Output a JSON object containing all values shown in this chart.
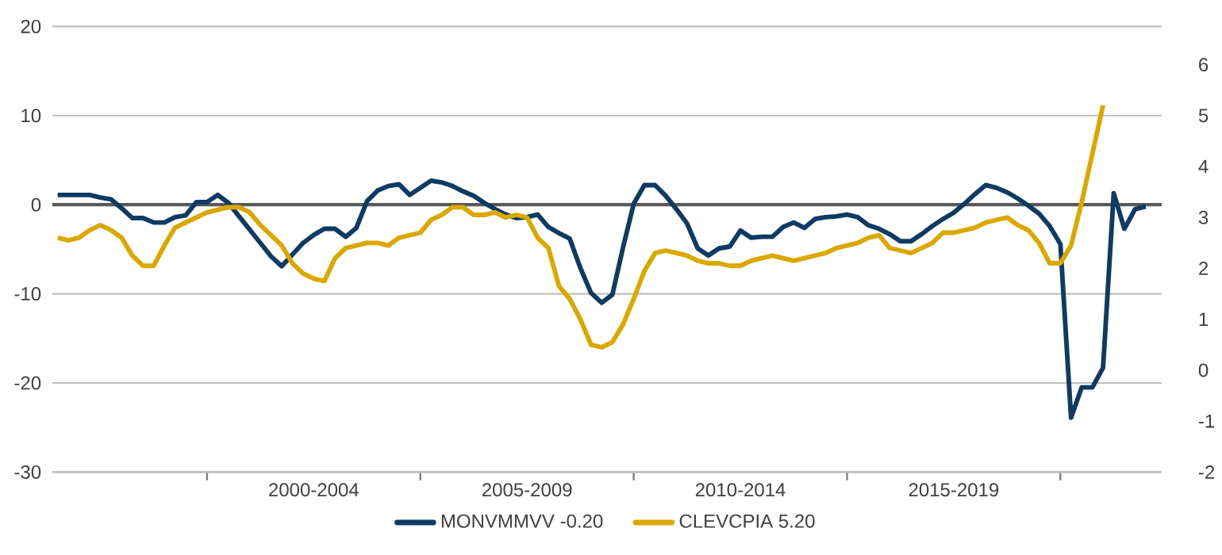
{
  "chart_data": {
    "type": "line",
    "categories": [
      null,
      null,
      null,
      null,
      null,
      null,
      null,
      null,
      null,
      null,
      null,
      null,
      null,
      null,
      null,
      null,
      null,
      null,
      null,
      null,
      null,
      null,
      null,
      null,
      "2000-2004",
      null,
      null,
      null,
      null,
      null,
      null,
      null,
      null,
      null,
      null,
      null,
      null,
      null,
      null,
      null,
      null,
      null,
      null,
      null,
      "2005-2009",
      null,
      null,
      null,
      null,
      null,
      null,
      null,
      null,
      null,
      null,
      null,
      null,
      null,
      null,
      null,
      null,
      null,
      null,
      null,
      "2010-2014",
      null,
      null,
      null,
      null,
      null,
      null,
      null,
      null,
      null,
      null,
      null,
      null,
      null,
      null,
      null,
      null,
      null,
      null,
      null,
      "2015-2019",
      null,
      null,
      null,
      null,
      null,
      null,
      null,
      null,
      null,
      null,
      null,
      null,
      null,
      null,
      null,
      null,
      null,
      null,
      null
    ],
    "ylim": [
      -30,
      20
    ],
    "yticks": [
      -30,
      -20,
      -10,
      0,
      10,
      20
    ],
    "y2lim": [
      -2,
      6.75
    ],
    "y2ticks": [
      -2,
      -1,
      0,
      1,
      2,
      3,
      4,
      5,
      6
    ],
    "grid": "y",
    "legend": "bottom",
    "ref_lines": [
      {
        "axis": "y",
        "value": 0,
        "color": "#595959"
      }
    ],
    "series": [
      {
        "name": "MONVMMVV -0.20",
        "color": "#0f3b63",
        "values": [
          1.1,
          1.1,
          1.1,
          1.1,
          0.8,
          0.6,
          -0.4,
          -1.5,
          -1.5,
          -2.0,
          -2.0,
          -1.4,
          -1.2,
          0.3,
          0.3,
          1.1,
          0.2,
          -1.3,
          -2.8,
          -4.3,
          -5.8,
          -6.9,
          -5.6,
          -4.3,
          -3.4,
          -2.7,
          -2.7,
          -3.6,
          -2.6,
          0.4,
          1.6,
          2.1,
          2.3,
          1.1,
          1.9,
          2.7,
          2.5,
          2.1,
          1.5,
          1.0,
          0.2,
          -0.5,
          -1.1,
          -1.5,
          -1.4,
          -1.1,
          -2.5,
          -3.2,
          -3.8,
          -7.1,
          -9.9,
          -11.0,
          -10.1,
          -4.8,
          0.1,
          2.2,
          2.2,
          1.0,
          -0.5,
          -2.1,
          -4.9,
          -5.7,
          -4.9,
          -4.7,
          -2.9,
          -3.7,
          -3.6,
          -3.6,
          -2.5,
          -2.0,
          -2.6,
          -1.6,
          -1.4,
          -1.3,
          -1.1,
          -1.4,
          -2.3,
          -2.7,
          -3.3,
          -4.1,
          -4.1,
          -3.3,
          -2.4,
          -1.6,
          -0.9,
          0.1,
          1.2,
          2.2,
          1.9,
          1.4,
          0.7,
          -0.1,
          -1.0,
          -2.4,
          -4.4,
          -23.9,
          -20.5,
          -20.5,
          -18.3,
          1.3,
          -2.7,
          -0.5,
          -0.2,
          null
        ]
      },
      {
        "name": "CLEVCPIA 5.20",
        "color": "#dba800",
        "axis": "y2",
        "values": [
          2.6,
          2.55,
          2.6,
          2.75,
          2.85,
          2.75,
          2.6,
          2.25,
          2.05,
          2.05,
          2.45,
          2.8,
          2.9,
          3.0,
          3.1,
          3.15,
          3.2,
          3.2,
          3.1,
          2.85,
          2.65,
          2.45,
          2.1,
          1.9,
          1.8,
          1.75,
          2.2,
          2.4,
          2.45,
          2.5,
          2.5,
          2.45,
          2.6,
          2.65,
          2.7,
          2.95,
          3.05,
          3.2,
          3.2,
          3.05,
          3.05,
          3.1,
          3.0,
          3.05,
          3.0,
          2.6,
          2.4,
          1.65,
          1.4,
          1.0,
          0.5,
          0.45,
          0.55,
          0.9,
          1.4,
          1.95,
          2.3,
          2.35,
          2.3,
          2.25,
          2.15,
          2.1,
          2.1,
          2.05,
          2.05,
          2.15,
          2.2,
          2.25,
          2.2,
          2.15,
          2.2,
          2.25,
          2.3,
          2.4,
          2.45,
          2.5,
          2.6,
          2.65,
          2.4,
          2.35,
          2.3,
          2.4,
          2.5,
          2.7,
          2.7,
          2.75,
          2.8,
          2.9,
          2.95,
          3.0,
          2.85,
          2.75,
          2.5,
          2.1,
          2.1,
          2.45,
          3.3,
          4.25,
          5.2,
          null,
          null,
          null,
          null,
          null
        ]
      }
    ]
  }
}
